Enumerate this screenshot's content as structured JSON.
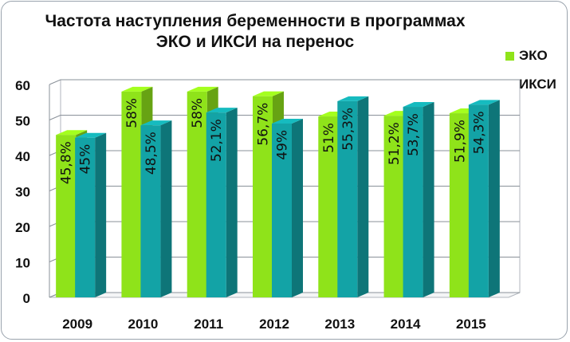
{
  "chart_data": {
    "type": "bar",
    "title_line1": "Частота наступления беременности в программах",
    "title_line2": "ЭКО и ИКСИ на перенос",
    "categories": [
      "2009",
      "2010",
      "2011",
      "2012",
      "2013",
      "2014",
      "2015"
    ],
    "series": [
      {
        "name": "ЭКО",
        "color": "#8fe31a",
        "values": [
          45.8,
          58,
          58,
          56.7,
          51,
          51.2,
          51.9
        ],
        "labels": [
          "45,8%",
          "58%",
          "58%",
          "56,7%",
          "51%",
          "51,2%",
          "51,9%"
        ]
      },
      {
        "name": "ИКСИ",
        "color": "#13a3a6",
        "values": [
          45,
          48.5,
          52.1,
          49,
          55.3,
          53.7,
          54.3
        ],
        "labels": [
          "45%",
          "48,5%",
          "52,1%",
          "49%",
          "55,3%",
          "53,7%",
          "54,3%"
        ]
      }
    ],
    "yticks": [
      "0",
      "10",
      "20",
      "30",
      "40",
      "50",
      "60"
    ],
    "ylim": [
      0,
      60
    ],
    "grid": true,
    "legend": "right"
  }
}
